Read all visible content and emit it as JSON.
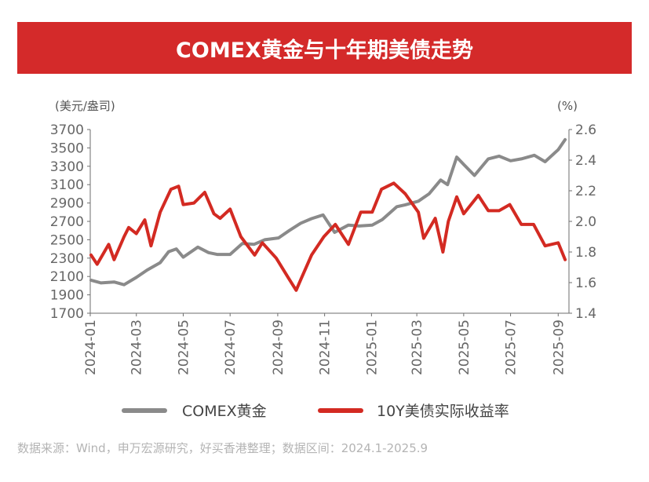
{
  "colors": {
    "gold": "#8a8a8a",
    "yield": "#d32a22",
    "title_bg": "#d42a2a",
    "axis": "#6e6e6e"
  },
  "source_note": "数据来源：Wind，申万宏源研究，好买香港整理；数据区间：2024.1-2025.9",
  "chart_data": {
    "type": "line",
    "title": "COMEX黄金与十年期美债走势",
    "left_unit": "(美元/盎司)",
    "right_unit": "(%)",
    "x_ticks": [
      "2024-01",
      "2024-03",
      "2024-05",
      "2024-07",
      "2024-09",
      "2024-11",
      "2025-01",
      "2025-03",
      "2025-05",
      "2025-07",
      "2025-09"
    ],
    "y_left": {
      "min": 1700,
      "max": 3700,
      "ticks": [
        1700,
        1900,
        2100,
        2300,
        2500,
        2700,
        2900,
        3100,
        3300,
        3500,
        3700
      ]
    },
    "y_right": {
      "min": 1.4,
      "max": 2.6,
      "ticks": [
        "1.4",
        "1.6",
        "1.8",
        "2.0",
        "2.2",
        "2.4",
        "2.6"
      ]
    },
    "legend_position": "bottom",
    "grid": false,
    "series": [
      {
        "name": "COMEX黄金",
        "axis": "left",
        "color": "#8a8a8a",
        "x": [
          "2024-01-02",
          "2024-01-15",
          "2024-02-01",
          "2024-02-14",
          "2024-03-01",
          "2024-03-15",
          "2024-04-01",
          "2024-04-12",
          "2024-04-22",
          "2024-05-01",
          "2024-05-20",
          "2024-06-03",
          "2024-06-14",
          "2024-07-01",
          "2024-07-17",
          "2024-08-01",
          "2024-08-15",
          "2024-09-02",
          "2024-09-16",
          "2024-10-01",
          "2024-10-15",
          "2024-10-30",
          "2024-11-14",
          "2024-12-02",
          "2024-12-16",
          "2025-01-02",
          "2025-01-15",
          "2025-02-03",
          "2025-02-14",
          "2025-03-03",
          "2025-03-17",
          "2025-04-01",
          "2025-04-10",
          "2025-04-22",
          "2025-05-01",
          "2025-05-15",
          "2025-06-02",
          "2025-06-16",
          "2025-07-01",
          "2025-07-15",
          "2025-08-01",
          "2025-08-15",
          "2025-09-01",
          "2025-09-10"
        ],
        "values": [
          2060,
          2030,
          2040,
          2010,
          2090,
          2170,
          2250,
          2370,
          2400,
          2310,
          2420,
          2360,
          2340,
          2340,
          2460,
          2450,
          2500,
          2520,
          2600,
          2680,
          2730,
          2770,
          2580,
          2660,
          2650,
          2660,
          2720,
          2860,
          2880,
          2920,
          3000,
          3150,
          3100,
          3400,
          3320,
          3200,
          3380,
          3410,
          3360,
          3380,
          3420,
          3350,
          3480,
          3590
        ]
      },
      {
        "name": "10Y美债实际收益率",
        "axis": "right",
        "color": "#d32a22",
        "x": [
          "2024-01-02",
          "2024-01-10",
          "2024-01-25",
          "2024-02-01",
          "2024-02-14",
          "2024-02-20",
          "2024-03-01",
          "2024-03-12",
          "2024-03-20",
          "2024-04-01",
          "2024-04-15",
          "2024-04-25",
          "2024-05-01",
          "2024-05-15",
          "2024-05-29",
          "2024-06-10",
          "2024-06-18",
          "2024-07-01",
          "2024-07-15",
          "2024-08-02",
          "2024-08-12",
          "2024-08-30",
          "2024-09-15",
          "2024-09-25",
          "2024-10-01",
          "2024-10-15",
          "2024-10-31",
          "2024-11-15",
          "2024-12-02",
          "2024-12-18",
          "2025-01-02",
          "2025-01-14",
          "2025-01-30",
          "2025-02-14",
          "2025-03-03",
          "2025-03-10",
          "2025-03-25",
          "2025-04-04",
          "2025-04-11",
          "2025-04-22",
          "2025-05-01",
          "2025-05-20",
          "2025-06-02",
          "2025-06-16",
          "2025-06-30",
          "2025-07-15",
          "2025-07-31",
          "2025-08-15",
          "2025-09-01",
          "2025-09-10"
        ],
        "values": [
          1.78,
          1.72,
          1.85,
          1.75,
          1.9,
          1.96,
          1.92,
          2.01,
          1.84,
          2.06,
          2.21,
          2.23,
          2.11,
          2.12,
          2.19,
          2.05,
          2.02,
          2.08,
          1.9,
          1.78,
          1.86,
          1.76,
          1.63,
          1.55,
          1.62,
          1.78,
          1.9,
          1.98,
          1.85,
          2.06,
          2.06,
          2.21,
          2.25,
          2.18,
          2.06,
          1.89,
          2.02,
          1.8,
          2.0,
          2.16,
          2.05,
          2.17,
          2.07,
          2.07,
          2.11,
          1.98,
          1.98,
          1.84,
          1.86,
          1.75
        ]
      }
    ]
  }
}
